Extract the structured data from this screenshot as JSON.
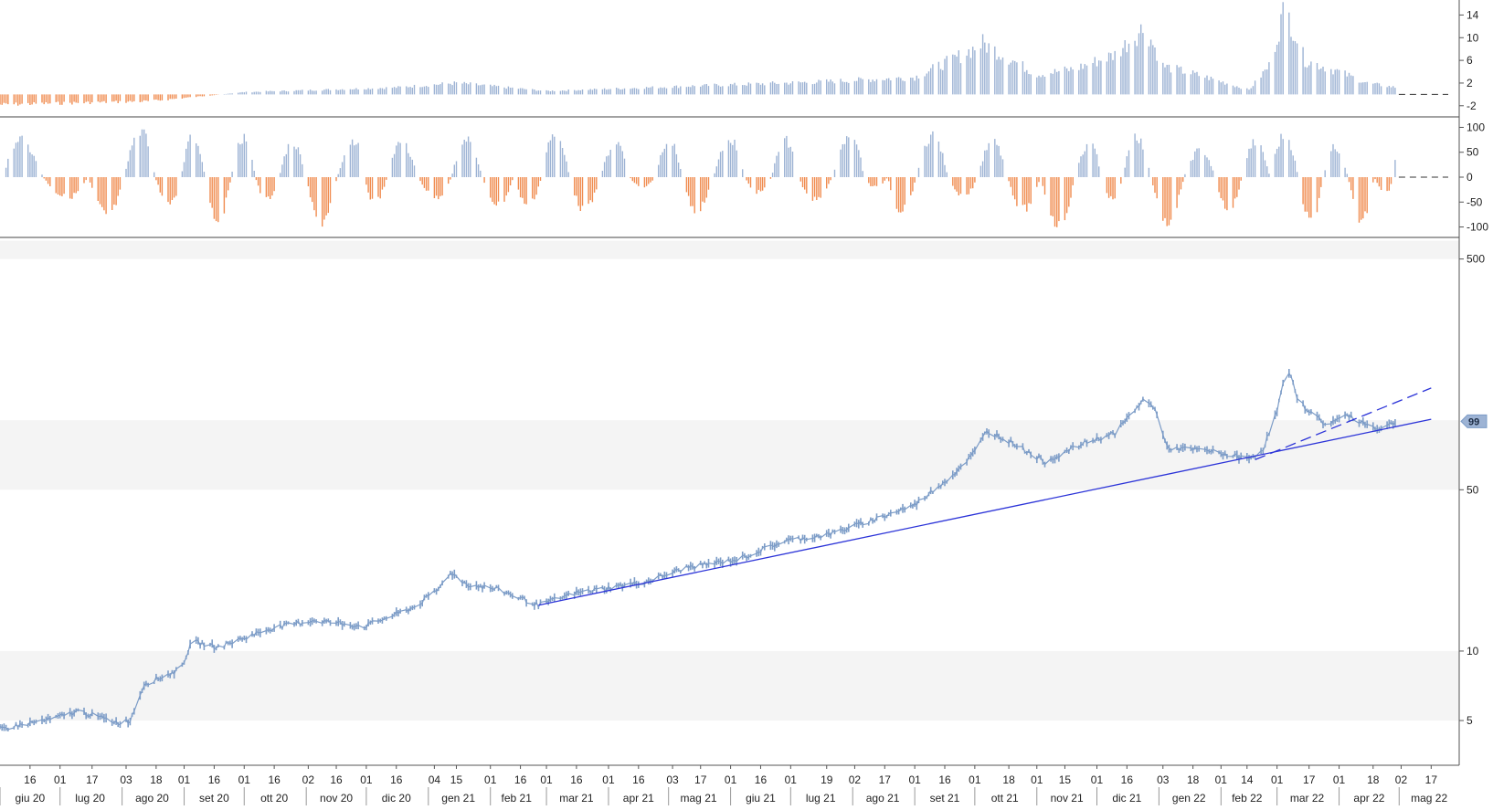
{
  "chart_data": [
    {
      "type": "bar",
      "panel": "upper-oscillator",
      "title": "",
      "y_ticks": [
        14,
        10,
        6,
        2,
        -2
      ],
      "ylim": [
        -3,
        16
      ],
      "zero_line": "dashed",
      "colors": {
        "positive": "#9db3d4",
        "negative": "#f08c50"
      },
      "keypoints": [
        {
          "date": "2020-06-01",
          "value": -1.8
        },
        {
          "date": "2020-08-15",
          "value": -1.2
        },
        {
          "date": "2020-10-01",
          "value": 0.4
        },
        {
          "date": "2020-12-15",
          "value": 1.2
        },
        {
          "date": "2021-01-15",
          "value": 2.0
        },
        {
          "date": "2021-03-01",
          "value": 0.6
        },
        {
          "date": "2021-05-15",
          "value": 1.5
        },
        {
          "date": "2021-07-15",
          "value": 2.2
        },
        {
          "date": "2021-09-01",
          "value": 3.0
        },
        {
          "date": "2021-09-25",
          "value": 7.0
        },
        {
          "date": "2021-10-05",
          "value": 9.0
        },
        {
          "date": "2021-10-20",
          "value": 6.0
        },
        {
          "date": "2021-11-01",
          "value": 3.5
        },
        {
          "date": "2021-11-20",
          "value": 4.5
        },
        {
          "date": "2021-12-10",
          "value": 7.0
        },
        {
          "date": "2021-12-25",
          "value": 12.0
        },
        {
          "date": "2022-01-03",
          "value": 5.0
        },
        {
          "date": "2022-01-25",
          "value": 3.0
        },
        {
          "date": "2022-02-15",
          "value": 0.8
        },
        {
          "date": "2022-02-25",
          "value": 5.0
        },
        {
          "date": "2022-03-05",
          "value": 15.5
        },
        {
          "date": "2022-03-15",
          "value": 6.0
        },
        {
          "date": "2022-04-01",
          "value": 4.0
        },
        {
          "date": "2022-04-15",
          "value": 2.0
        },
        {
          "date": "2022-04-30",
          "value": 1.2
        }
      ]
    },
    {
      "type": "bar",
      "panel": "lower-oscillator",
      "title": "",
      "y_ticks": [
        100,
        50,
        0,
        -50,
        -100
      ],
      "ylim": [
        -110,
        110
      ],
      "zero_line": "dashed",
      "colors": {
        "positive": "#9db3d4",
        "negative": "#f08c50"
      },
      "cycle_peaks": [
        {
          "date": "2020-06-10",
          "value": 75
        },
        {
          "date": "2020-07-05",
          "value": -40
        },
        {
          "date": "2020-07-25",
          "value": -75
        },
        {
          "date": "2020-08-10",
          "value": 95
        },
        {
          "date": "2020-08-25",
          "value": -55
        },
        {
          "date": "2020-09-05",
          "value": 80
        },
        {
          "date": "2020-09-18",
          "value": -85
        },
        {
          "date": "2020-10-01",
          "value": 80
        },
        {
          "date": "2020-10-12",
          "value": -45
        },
        {
          "date": "2020-10-25",
          "value": 70
        },
        {
          "date": "2020-11-08",
          "value": -90
        },
        {
          "date": "2020-11-25",
          "value": 75
        },
        {
          "date": "2020-12-05",
          "value": -50
        },
        {
          "date": "2020-12-18",
          "value": 70
        },
        {
          "date": "2021-01-05",
          "value": -40
        },
        {
          "date": "2021-01-20",
          "value": 75
        },
        {
          "date": "2021-02-05",
          "value": -55
        },
        {
          "date": "2021-02-20",
          "value": -55
        },
        {
          "date": "2021-03-05",
          "value": 90
        },
        {
          "date": "2021-03-20",
          "value": -65
        },
        {
          "date": "2021-04-05",
          "value": 70
        },
        {
          "date": "2021-04-18",
          "value": -20
        },
        {
          "date": "2021-05-01",
          "value": 75
        },
        {
          "date": "2021-05-15",
          "value": -65
        },
        {
          "date": "2021-06-01",
          "value": 75
        },
        {
          "date": "2021-06-15",
          "value": -30
        },
        {
          "date": "2021-06-28",
          "value": 75
        },
        {
          "date": "2021-07-12",
          "value": -45
        },
        {
          "date": "2021-08-01",
          "value": 85
        },
        {
          "date": "2021-08-12",
          "value": -20
        },
        {
          "date": "2021-08-25",
          "value": -65
        },
        {
          "date": "2021-09-10",
          "value": 85
        },
        {
          "date": "2021-09-25",
          "value": -40
        },
        {
          "date": "2021-10-10",
          "value": 70
        },
        {
          "date": "2021-10-25",
          "value": -65
        },
        {
          "date": "2021-11-12",
          "value": -95
        },
        {
          "date": "2021-11-28",
          "value": 70
        },
        {
          "date": "2021-12-08",
          "value": -45
        },
        {
          "date": "2021-12-20",
          "value": 85
        },
        {
          "date": "2022-01-05",
          "value": -90
        },
        {
          "date": "2022-01-22",
          "value": 55
        },
        {
          "date": "2022-02-05",
          "value": -65
        },
        {
          "date": "2022-02-18",
          "value": 70
        },
        {
          "date": "2022-03-05",
          "value": 85
        },
        {
          "date": "2022-03-18",
          "value": -90
        },
        {
          "date": "2022-03-30",
          "value": 60
        },
        {
          "date": "2022-04-12",
          "value": -85
        },
        {
          "date": "2022-04-25",
          "value": -30
        },
        {
          "date": "2022-05-01",
          "value": 70
        }
      ]
    },
    {
      "type": "line",
      "panel": "price",
      "scale": "log",
      "title": "",
      "ylim": [
        3.2,
        620
      ],
      "y_ticks": [
        500,
        50,
        10,
        5
      ],
      "last_value_label": "99",
      "series_color": "#7c9cc7",
      "bands": [
        [
          50,
          100
        ],
        [
          5,
          10
        ],
        [
          500,
          600
        ]
      ],
      "price_keypoints": [
        {
          "date": "2020-06-01",
          "value": 4.6
        },
        {
          "date": "2020-06-28",
          "value": 5.1
        },
        {
          "date": "2020-07-10",
          "value": 5.5
        },
        {
          "date": "2020-07-30",
          "value": 4.9
        },
        {
          "date": "2020-08-05",
          "value": 5.0
        },
        {
          "date": "2020-08-12",
          "value": 7.2
        },
        {
          "date": "2020-08-30",
          "value": 8.3
        },
        {
          "date": "2020-09-05",
          "value": 11.0
        },
        {
          "date": "2020-09-18",
          "value": 10.4
        },
        {
          "date": "2020-10-15",
          "value": 12.6
        },
        {
          "date": "2020-11-05",
          "value": 13.6
        },
        {
          "date": "2020-11-30",
          "value": 12.8
        },
        {
          "date": "2020-12-25",
          "value": 15.5
        },
        {
          "date": "2021-01-06",
          "value": 18.5
        },
        {
          "date": "2021-01-12",
          "value": 22.0
        },
        {
          "date": "2021-01-20",
          "value": 19.5
        },
        {
          "date": "2021-02-05",
          "value": 18.5
        },
        {
          "date": "2021-02-25",
          "value": 15.8
        },
        {
          "date": "2021-03-15",
          "value": 17.8
        },
        {
          "date": "2021-04-20",
          "value": 20.0
        },
        {
          "date": "2021-05-10",
          "value": 23.0
        },
        {
          "date": "2021-06-05",
          "value": 25.0
        },
        {
          "date": "2021-06-28",
          "value": 30.0
        },
        {
          "date": "2021-07-20",
          "value": 32.0
        },
        {
          "date": "2021-08-15",
          "value": 38.0
        },
        {
          "date": "2021-09-01",
          "value": 43.0
        },
        {
          "date": "2021-09-20",
          "value": 58.0
        },
        {
          "date": "2021-10-01",
          "value": 73.0
        },
        {
          "date": "2021-10-07",
          "value": 90.0
        },
        {
          "date": "2021-10-20",
          "value": 80.0
        },
        {
          "date": "2021-11-05",
          "value": 66.0
        },
        {
          "date": "2021-11-25",
          "value": 80.0
        },
        {
          "date": "2021-12-10",
          "value": 88.0
        },
        {
          "date": "2021-12-25",
          "value": 125.0
        },
        {
          "date": "2021-12-31",
          "value": 108.0
        },
        {
          "date": "2022-01-05",
          "value": 76.0
        },
        {
          "date": "2022-01-25",
          "value": 74.0
        },
        {
          "date": "2022-02-15",
          "value": 68.0
        },
        {
          "date": "2022-02-22",
          "value": 75.0
        },
        {
          "date": "2022-03-01",
          "value": 110.0
        },
        {
          "date": "2022-03-06",
          "value": 170.0
        },
        {
          "date": "2022-03-12",
          "value": 120.0
        },
        {
          "date": "2022-03-25",
          "value": 96.0
        },
        {
          "date": "2022-04-05",
          "value": 105.0
        },
        {
          "date": "2022-04-20",
          "value": 92.0
        },
        {
          "date": "2022-05-01",
          "value": 99.0
        }
      ],
      "trendlines": [
        {
          "style": "solid",
          "color": "#2c34d8",
          "points": [
            {
              "date": "2021-02-25",
              "value": 15.8
            },
            {
              "date": "2022-05-17",
              "value": 101.0
            }
          ]
        },
        {
          "style": "dashed",
          "color": "#2c34d8",
          "points": [
            {
              "date": "2022-02-18",
              "value": 67.5
            },
            {
              "date": "2022-05-17",
              "value": 138.0
            }
          ]
        }
      ]
    }
  ],
  "x_axis": {
    "ticks": [
      {
        "date": "2020-06-16",
        "label": "16"
      },
      {
        "date": "2020-07-01",
        "label": "01"
      },
      {
        "date": "2020-07-17",
        "label": "17"
      },
      {
        "date": "2020-08-03",
        "label": "03"
      },
      {
        "date": "2020-08-18",
        "label": "18"
      },
      {
        "date": "2020-09-01",
        "label": "01"
      },
      {
        "date": "2020-09-16",
        "label": "16"
      },
      {
        "date": "2020-10-01",
        "label": "01"
      },
      {
        "date": "2020-10-16",
        "label": "16"
      },
      {
        "date": "2020-11-02",
        "label": "02"
      },
      {
        "date": "2020-11-16",
        "label": "16"
      },
      {
        "date": "2020-12-01",
        "label": "01"
      },
      {
        "date": "2020-12-16",
        "label": "16"
      },
      {
        "date": "2021-01-04",
        "label": "04"
      },
      {
        "date": "2021-01-15",
        "label": "15"
      },
      {
        "date": "2021-02-01",
        "label": "01"
      },
      {
        "date": "2021-02-16",
        "label": "16"
      },
      {
        "date": "2021-03-01",
        "label": "01"
      },
      {
        "date": "2021-03-16",
        "label": "16"
      },
      {
        "date": "2021-04-01",
        "label": "01"
      },
      {
        "date": "2021-04-16",
        "label": "16"
      },
      {
        "date": "2021-05-03",
        "label": "03"
      },
      {
        "date": "2021-05-17",
        "label": "17"
      },
      {
        "date": "2021-06-01",
        "label": "01"
      },
      {
        "date": "2021-06-16",
        "label": "16"
      },
      {
        "date": "2021-07-01",
        "label": "01"
      },
      {
        "date": "2021-07-19",
        "label": "19"
      },
      {
        "date": "2021-08-02",
        "label": "02"
      },
      {
        "date": "2021-08-17",
        "label": "17"
      },
      {
        "date": "2021-09-01",
        "label": "01"
      },
      {
        "date": "2021-09-16",
        "label": "16"
      },
      {
        "date": "2021-10-01",
        "label": "01"
      },
      {
        "date": "2021-10-18",
        "label": "18"
      },
      {
        "date": "2021-11-01",
        "label": "01"
      },
      {
        "date": "2021-11-15",
        "label": "15"
      },
      {
        "date": "2021-12-01",
        "label": "01"
      },
      {
        "date": "2021-12-16",
        "label": "16"
      },
      {
        "date": "2022-01-03",
        "label": "03"
      },
      {
        "date": "2022-01-18",
        "label": "18"
      },
      {
        "date": "2022-02-01",
        "label": "01"
      },
      {
        "date": "2022-02-14",
        "label": "14"
      },
      {
        "date": "2022-03-01",
        "label": "01"
      },
      {
        "date": "2022-03-17",
        "label": "17"
      },
      {
        "date": "2022-04-01",
        "label": "01"
      },
      {
        "date": "2022-04-18",
        "label": "18"
      },
      {
        "date": "2022-05-02",
        "label": "02"
      },
      {
        "date": "2022-05-17",
        "label": "17"
      }
    ],
    "months": [
      {
        "date": "2020-06-16",
        "label": "giu 20"
      },
      {
        "date": "2020-07-16",
        "label": "lug 20"
      },
      {
        "date": "2020-08-16",
        "label": "ago 20"
      },
      {
        "date": "2020-09-16",
        "label": "set 20"
      },
      {
        "date": "2020-10-16",
        "label": "ott 20"
      },
      {
        "date": "2020-11-16",
        "label": "nov 20"
      },
      {
        "date": "2020-12-16",
        "label": "dic 20"
      },
      {
        "date": "2021-01-16",
        "label": "gen 21"
      },
      {
        "date": "2021-02-14",
        "label": "feb 21"
      },
      {
        "date": "2021-03-16",
        "label": "mar 21"
      },
      {
        "date": "2021-04-16",
        "label": "apr 21"
      },
      {
        "date": "2021-05-16",
        "label": "mag 21"
      },
      {
        "date": "2021-06-16",
        "label": "giu 21"
      },
      {
        "date": "2021-07-16",
        "label": "lug 21"
      },
      {
        "date": "2021-08-16",
        "label": "ago 21"
      },
      {
        "date": "2021-09-16",
        "label": "set 21"
      },
      {
        "date": "2021-10-16",
        "label": "ott 21"
      },
      {
        "date": "2021-11-16",
        "label": "nov 21"
      },
      {
        "date": "2021-12-16",
        "label": "dic 21"
      },
      {
        "date": "2022-01-16",
        "label": "gen 22"
      },
      {
        "date": "2022-02-14",
        "label": "feb 22"
      },
      {
        "date": "2022-03-16",
        "label": "mar 22"
      },
      {
        "date": "2022-04-16",
        "label": "apr 22"
      },
      {
        "date": "2022-05-16",
        "label": "mag 22"
      }
    ],
    "range": [
      "2020-06-01",
      "2022-05-31"
    ]
  }
}
